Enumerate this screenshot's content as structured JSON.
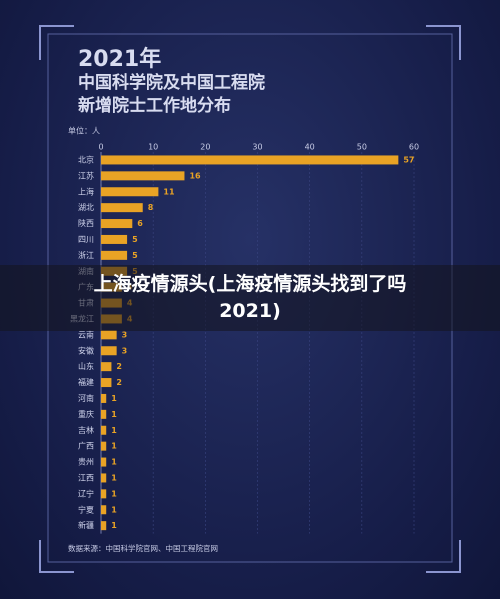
{
  "chart_data": {
    "type": "hbar",
    "title_lines": [
      "2021年",
      "中国科学院及中国工程院",
      "新增院士工作地分布"
    ],
    "unit_label": "单位：人",
    "source": "数据来源：中国科学院官网、中国工程院官网",
    "categories": [
      "北京",
      "江苏",
      "上海",
      "湖北",
      "陕西",
      "四川",
      "浙江",
      "湖南",
      "广东",
      "甘肃",
      "黑龙江",
      "云南",
      "安徽",
      "山东",
      "福建",
      "河南",
      "重庆",
      "吉林",
      "广西",
      "贵州",
      "江西",
      "辽宁",
      "宁夏",
      "新疆"
    ],
    "values": [
      57,
      16,
      11,
      8,
      6,
      5,
      5,
      5,
      4,
      4,
      4,
      3,
      3,
      2,
      2,
      1,
      1,
      1,
      1,
      1,
      1,
      1,
      1,
      1
    ],
    "color": "#e9a325",
    "xlim": [
      0,
      60
    ],
    "xticks": [
      0,
      10,
      20,
      30,
      40,
      50,
      60
    ],
    "grid": true
  },
  "overlay_caption": "上海疫情源头(上海疫情源头找到了吗2021)"
}
